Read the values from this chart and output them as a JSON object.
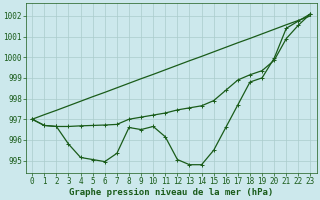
{
  "title": "Graphe pression niveau de la mer (hPa)",
  "background_color": "#cce8ec",
  "grid_color": "#aacccc",
  "line_color": "#1a5c1a",
  "x_values": [
    0,
    1,
    2,
    3,
    4,
    5,
    6,
    7,
    8,
    9,
    10,
    11,
    12,
    13,
    14,
    15,
    16,
    17,
    18,
    19,
    20,
    21,
    22,
    23
  ],
  "line_straight": [
    997.0,
    997.22,
    997.43,
    997.65,
    997.87,
    998.09,
    998.3,
    998.52,
    998.74,
    998.96,
    999.17,
    999.39,
    999.61,
    999.83,
    1000.04,
    1000.26,
    1000.48,
    1000.7,
    1000.91,
    1001.13,
    1001.35,
    1001.57,
    1001.78,
    1002.0
  ],
  "line_wavy": [
    997.0,
    996.7,
    996.65,
    995.8,
    995.15,
    995.05,
    994.95,
    995.35,
    996.6,
    996.5,
    996.65,
    996.15,
    995.05,
    994.8,
    994.8,
    995.5,
    996.6,
    997.7,
    998.8,
    999.0,
    999.95,
    1001.4,
    1001.75,
    1002.1
  ],
  "line_mid": [
    997.0,
    996.7,
    996.65,
    996.65,
    996.68,
    996.7,
    996.72,
    996.75,
    997.0,
    997.1,
    997.2,
    997.3,
    997.45,
    997.55,
    997.65,
    997.9,
    998.4,
    998.9,
    999.15,
    999.35,
    999.85,
    1000.9,
    1001.55,
    1002.1
  ],
  "ylim": [
    994.4,
    1002.6
  ],
  "yticks": [
    995,
    996,
    997,
    998,
    999,
    1000,
    1001,
    1002
  ],
  "xticks": [
    0,
    1,
    2,
    3,
    4,
    5,
    6,
    7,
    8,
    9,
    10,
    11,
    12,
    13,
    14,
    15,
    16,
    17,
    18,
    19,
    20,
    21,
    22,
    23
  ],
  "font_size": 5.5,
  "title_font_size": 6.5
}
